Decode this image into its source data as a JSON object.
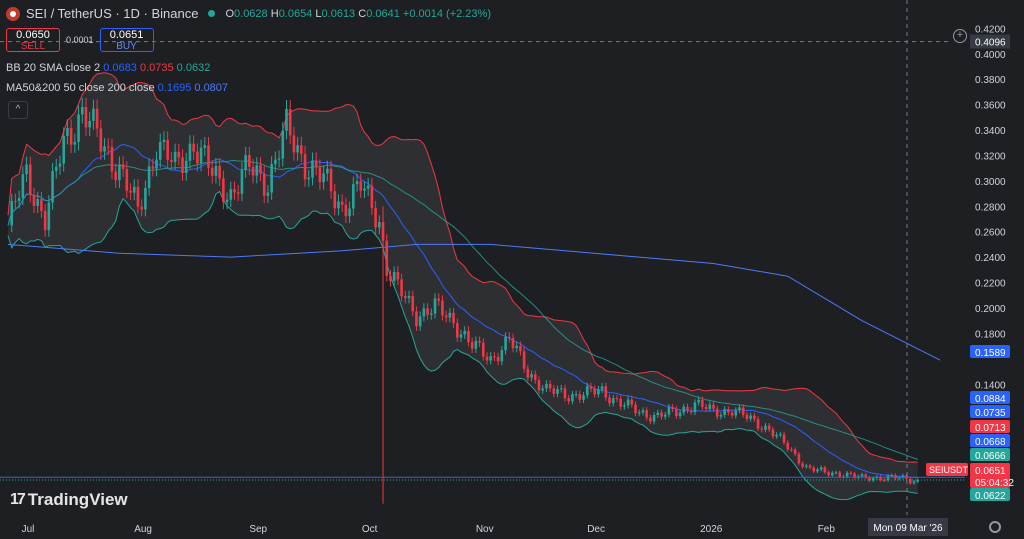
{
  "header": {
    "symbol": "SEI / TetherUS · 1D · Binance",
    "o_label": "O",
    "o": "0.0628",
    "h_label": "H",
    "h": "0.0654",
    "l_label": "L",
    "l": "0.0613",
    "c_label": "C",
    "c": "0.0641",
    "change": "+0.0014 (+2.23%)"
  },
  "trade": {
    "sell_price": "0.0650",
    "sell_label": "SELL",
    "spread": "0.0001",
    "buy_price": "0.0651",
    "buy_label": "BUY"
  },
  "indicators": {
    "bb_label": "BB 20 SMA close 2",
    "bb_mid": "0.0683",
    "bb_upper": "0.0735",
    "bb_lower": "0.0632",
    "ma_label": "MA50&200 50 close 200 close",
    "ma50": "0.1695",
    "ma200": "0.0807"
  },
  "collapse_glyph": "^",
  "brand": "TradingView",
  "crosshair_date": "Mon 09 Mar '26",
  "colors": {
    "up": "#26a69a",
    "down": "#f23645",
    "bb_basis": "#2962ff",
    "bb_band": "#f23645",
    "bb_lower": "#26a69a",
    "ma50": "#2962ff",
    "ma200": "#4c7bf5"
  },
  "chart_data": {
    "type": "line",
    "title": "SEI / TetherUS · 1D · Binance",
    "price_axis_ticks": [
      "0.4200",
      "0.4000",
      "0.3800",
      "0.3600",
      "0.3400",
      "0.3200",
      "0.3000",
      "0.2800",
      "0.2600",
      "0.2400",
      "0.2200",
      "0.2000",
      "0.1800",
      "0.1400"
    ],
    "price_axis_highlight": "0.4096",
    "ylim": [
      0.045,
      0.425
    ],
    "x_ticks": [
      {
        "label": "Jul",
        "day": 0
      },
      {
        "label": "Aug",
        "day": 31
      },
      {
        "label": "Sep",
        "day": 62
      },
      {
        "label": "Oct",
        "day": 92
      },
      {
        "label": "Nov",
        "day": 123
      },
      {
        "label": "Dec",
        "day": 153
      },
      {
        "label": "2026",
        "day": 184
      },
      {
        "label": "Feb",
        "day": 215
      }
    ],
    "xlim_days": [
      0,
      251
    ],
    "close_series": [
      [
        0,
        0.265
      ],
      [
        5,
        0.305
      ],
      [
        10,
        0.27
      ],
      [
        15,
        0.33
      ],
      [
        20,
        0.355
      ],
      [
        25,
        0.33
      ],
      [
        30,
        0.31
      ],
      [
        35,
        0.275
      ],
      [
        40,
        0.33
      ],
      [
        45,
        0.31
      ],
      [
        50,
        0.33
      ],
      [
        55,
        0.305
      ],
      [
        60,
        0.29
      ],
      [
        65,
        0.31
      ],
      [
        70,
        0.3
      ],
      [
        75,
        0.34
      ],
      [
        80,
        0.315
      ],
      [
        85,
        0.3
      ],
      [
        90,
        0.28
      ],
      [
        95,
        0.295
      ],
      [
        100,
        0.27
      ],
      [
        102,
        0.232
      ],
      [
        105,
        0.215
      ],
      [
        110,
        0.195
      ],
      [
        115,
        0.2
      ],
      [
        120,
        0.19
      ],
      [
        125,
        0.17
      ],
      [
        130,
        0.16
      ],
      [
        135,
        0.175
      ],
      [
        140,
        0.15
      ],
      [
        145,
        0.135
      ],
      [
        150,
        0.132
      ],
      [
        155,
        0.132
      ],
      [
        160,
        0.135
      ],
      [
        165,
        0.125
      ],
      [
        170,
        0.118
      ],
      [
        175,
        0.115
      ],
      [
        180,
        0.118
      ],
      [
        185,
        0.125
      ],
      [
        190,
        0.118
      ],
      [
        195,
        0.12
      ],
      [
        200,
        0.112
      ],
      [
        205,
        0.105
      ],
      [
        210,
        0.09
      ],
      [
        215,
        0.075
      ],
      [
        220,
        0.07
      ],
      [
        225,
        0.07
      ],
      [
        230,
        0.066
      ],
      [
        235,
        0.067
      ],
      [
        240,
        0.066
      ],
      [
        245,
        0.064
      ]
    ],
    "ma200_series": [
      [
        0,
        0.25
      ],
      [
        30,
        0.243
      ],
      [
        60,
        0.24
      ],
      [
        90,
        0.245
      ],
      [
        110,
        0.25
      ],
      [
        130,
        0.25
      ],
      [
        150,
        0.245
      ],
      [
        170,
        0.24
      ],
      [
        190,
        0.235
      ],
      [
        210,
        0.225
      ],
      [
        230,
        0.19
      ],
      [
        251,
        0.159
      ]
    ],
    "price_labels": [
      {
        "text": "0.1589",
        "value": 0.1589,
        "color": "#2962ff"
      },
      {
        "text": "0.0884",
        "value": 0.0884,
        "color": "#2962ff"
      },
      {
        "text": "0.0735",
        "value": 0.0735,
        "color": "#2962ff"
      },
      {
        "text": "0.0713",
        "value": 0.0713,
        "color": "#f23645"
      },
      {
        "text": "0.0668",
        "value": 0.0668,
        "color": "#2962ff"
      },
      {
        "text": "0.0666",
        "value": 0.0666,
        "color": "#26a69a"
      },
      {
        "text": "0.0651",
        "value": 0.0651,
        "color": "#f23645"
      },
      {
        "text": "05:04:32",
        "value": 0.06,
        "color": "#f23645"
      },
      {
        "text": "0.0622",
        "value": 0.0622,
        "color": "#26a69a"
      }
    ],
    "symbol_tag": "SEIUSDT",
    "horizontal_lines": [
      {
        "value": 0.0668,
        "color": "#2962ff"
      },
      {
        "value": 0.0647,
        "color": "#26a69a"
      }
    ],
    "grid": false
  }
}
